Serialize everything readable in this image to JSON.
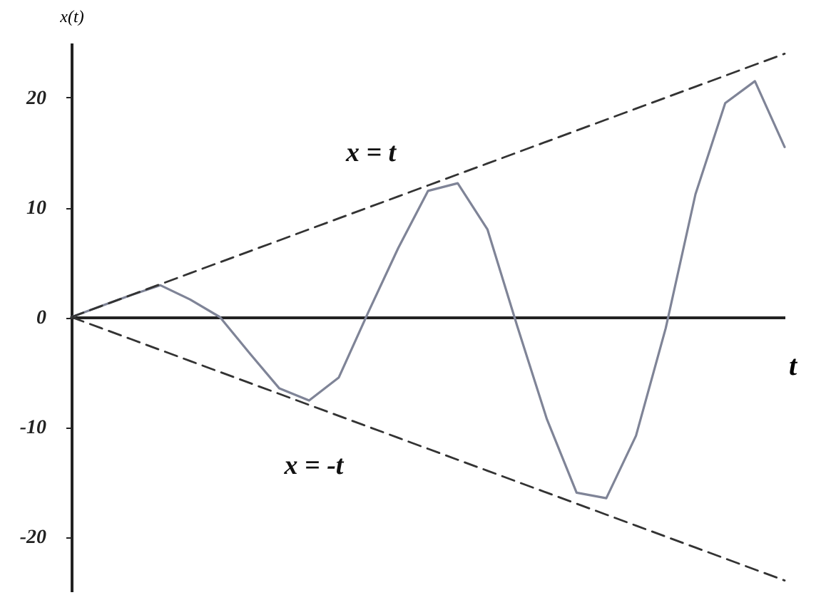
{
  "chart_data": {
    "type": "line",
    "xlabel": "t",
    "ylabel": "x(t)",
    "ylim": [
      -25,
      25
    ],
    "yticks": [
      {
        "value": -20,
        "label": "-20"
      },
      {
        "value": -10,
        "label": "-10"
      },
      0,
      10,
      20
    ],
    "tick_labels": "y",
    "categories": [
      null,
      null,
      null,
      null,
      null,
      null,
      null,
      null,
      null,
      null,
      null,
      null,
      null,
      null,
      null,
      null,
      null,
      null,
      null,
      null,
      null,
      null,
      null,
      null,
      null
    ],
    "series": [
      {
        "color": "#7f8497",
        "line_style": "solid",
        "values": [
          0,
          1.0,
          2.0,
          2.9,
          1.6,
          0,
          -3.3,
          -6.5,
          -7.6,
          -5.5,
          0.5,
          6.3,
          11.5,
          12.2,
          8.0,
          -0.8,
          -9.3,
          -16.0,
          -16.5,
          -10.8,
          -1.0,
          11.2,
          19.5,
          21.5,
          15.5
        ]
      },
      {
        "color": "#333333",
        "line_style": "dashed",
        "values": [
          0,
          1,
          2,
          3,
          4,
          5,
          6,
          7,
          8,
          9,
          10,
          11,
          12,
          13,
          14,
          15,
          16,
          17,
          18,
          19,
          20,
          21,
          22,
          23,
          24
        ]
      },
      {
        "color": "#333333",
        "line_style": "dashed",
        "values": [
          0,
          -1,
          -2,
          -3,
          -4,
          -5,
          -6,
          -7,
          -8,
          -9,
          -10,
          -11,
          -12,
          -13,
          -14,
          -15,
          -16,
          -17,
          -18,
          -19,
          -20,
          -21,
          -22,
          -23,
          -24
        ]
      }
    ],
    "annotations": [
      "x = t",
      "x = -t"
    ]
  }
}
